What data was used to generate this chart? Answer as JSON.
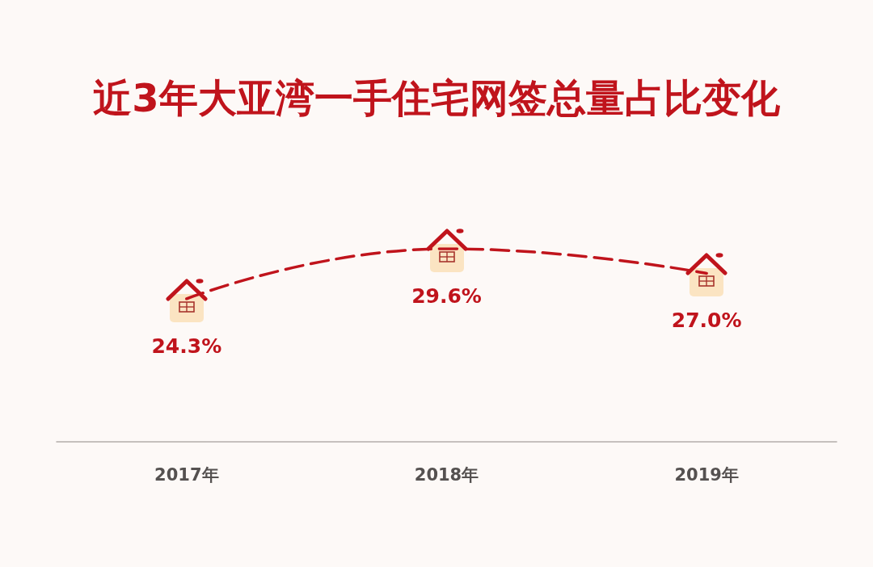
{
  "chart_data": {
    "type": "line",
    "title": "近3年大亚湾一手住宅网签总量占比变化",
    "categories": [
      "2017年",
      "2018年",
      "2019年"
    ],
    "series": [
      {
        "color": "#c0141c",
        "values": [
          24.3,
          29.6,
          27.0
        ],
        "value_labels": [
          "24.3%",
          "29.6%",
          "27.0%"
        ]
      }
    ],
    "line_style": "dashed",
    "marker": "none",
    "grid": false,
    "tick_labels": "x"
  }
}
